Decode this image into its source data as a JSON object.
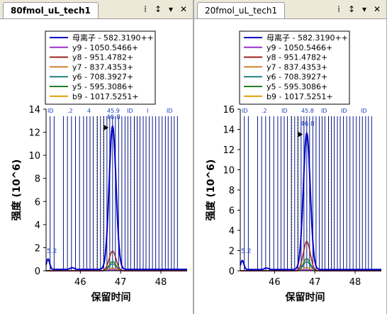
{
  "panes": [
    {
      "tab_title": "80fmol_uL_tech1",
      "tab_active": true,
      "controls": [
        "⁞",
        "↕",
        "▾",
        "✕"
      ],
      "chart_data": {
        "type": "line",
        "ylabel": "强度 (10^6)",
        "xlabel": "保留时间",
        "xlim": [
          45.15,
          48.65
        ],
        "ylim": [
          0,
          14
        ],
        "yticks": [
          0,
          2,
          4,
          6,
          8,
          10,
          12,
          14
        ],
        "xticks": [
          46,
          47,
          48
        ],
        "legend": [
          "母离子 - 582.3190++",
          "y9 - 1050.5466+",
          "y8 - 951.4782+",
          "y7 - 837.4353+",
          "y6 - 708.3927+",
          "y5 - 595.3086+",
          "b9 - 1017.5251+"
        ],
        "legend_colors": [
          "#0000cc",
          "#9b30c8",
          "#a02020",
          "#d08030",
          "#208080",
          "#208020",
          "#e0a000"
        ],
        "series_peaks": [
          12.4,
          0.1,
          1.7,
          0.25,
          0.6,
          0.8,
          0.1
        ],
        "peak_center": 46.8,
        "annotations": {
          "peak_label": "46.8",
          "start_label": "5.2",
          "id_labels": [
            "ID",
            ".2",
            "4",
            "45.9",
            "ID",
            "I",
            "ID"
          ]
        },
        "solid_vlines": [
          45.25,
          45.35,
          45.58,
          45.68,
          45.78,
          45.88,
          45.98,
          46.08,
          46.16,
          46.24,
          46.32,
          46.42,
          46.5,
          46.58,
          46.66,
          46.73,
          46.8,
          46.87,
          46.95,
          47.03,
          47.11,
          47.18,
          47.25,
          47.34,
          47.41,
          47.48,
          47.56,
          47.63,
          47.71,
          47.79,
          47.87,
          47.95,
          48.03,
          48.11,
          48.18,
          48.26,
          48.33,
          48.41
        ],
        "dashed_vlines": [
          46.42,
          46.58,
          47.34
        ]
      }
    },
    {
      "tab_title": "20fmol_uL_tech1",
      "tab_active": false,
      "controls": [
        "⁞",
        "↕",
        "▾",
        "✕"
      ],
      "chart_data": {
        "type": "line",
        "ylabel": "强度 (10^6)",
        "xlabel": "保留时间",
        "xlim": [
          45.15,
          48.65
        ],
        "ylim": [
          0,
          16
        ],
        "yticks": [
          0,
          2,
          4,
          6,
          8,
          10,
          12,
          14,
          16
        ],
        "xticks": [
          46,
          47,
          48
        ],
        "legend": [
          "母离子 - 582.3190++",
          "y9 - 1050.5466+",
          "y8 - 951.4782+",
          "y7 - 837.4353+",
          "y6 - 708.3927+",
          "y5 - 595.3086+",
          "b9 - 1017.5251+"
        ],
        "legend_colors": [
          "#0000cc",
          "#9b30c8",
          "#a02020",
          "#d08030",
          "#208080",
          "#208020",
          "#e0a000"
        ],
        "series_peaks": [
          13.5,
          0.1,
          2.9,
          0.3,
          0.9,
          1.2,
          0.1
        ],
        "peak_center": 46.8,
        "annotations": {
          "peak_label": "46.8",
          "start_label": "5.2",
          "id_labels": [
            "ID",
            ".2",
            "ID",
            "45.8",
            "ID",
            "ID",
            "ID"
          ]
        },
        "solid_vlines": [
          45.25,
          45.35,
          45.58,
          45.68,
          45.78,
          45.88,
          45.98,
          46.08,
          46.16,
          46.24,
          46.32,
          46.42,
          46.5,
          46.58,
          46.66,
          46.73,
          46.8,
          46.87,
          46.95,
          47.03,
          47.11,
          47.18,
          47.25,
          47.34,
          47.41,
          47.48,
          47.56,
          47.63,
          47.71,
          47.79,
          47.87,
          47.95,
          48.03,
          48.11,
          48.18,
          48.26,
          48.33,
          48.41
        ],
        "dashed_vlines": [
          46.42,
          46.58,
          47.34
        ]
      }
    }
  ]
}
